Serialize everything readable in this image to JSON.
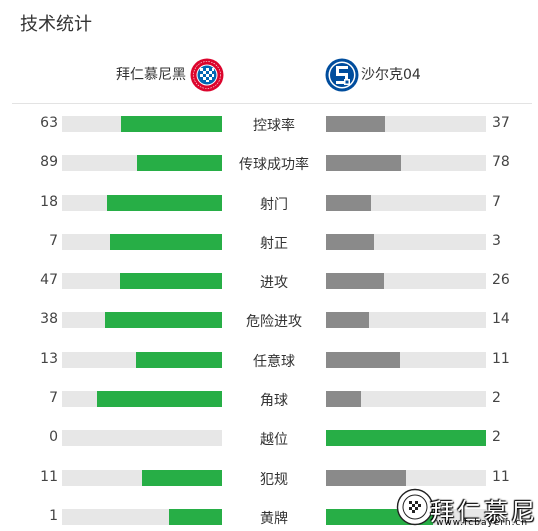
{
  "header": {
    "title": "技术统计"
  },
  "teams": {
    "home": {
      "name": "拜仁慕尼黑",
      "logo_icon": "bayern-munich-logo"
    },
    "away": {
      "name": "沙尔克04",
      "logo_icon": "schalke-04-logo"
    }
  },
  "colors": {
    "home_bar": "#27ae46",
    "away_bar": "#8a8a8a",
    "winner_bar": "#27ae46",
    "track": "#e7e7e7"
  },
  "stats": [
    {
      "label": "控球率",
      "home": "63",
      "away": "37",
      "home_frac": 0.63,
      "away_frac": 0.37
    },
    {
      "label": "传球成功率",
      "home": "89",
      "away": "78",
      "home_frac": 0.53,
      "away_frac": 0.47
    },
    {
      "label": "射门",
      "home": "18",
      "away": "7",
      "home_frac": 0.72,
      "away_frac": 0.28
    },
    {
      "label": "射正",
      "home": "7",
      "away": "3",
      "home_frac": 0.7,
      "away_frac": 0.3
    },
    {
      "label": "进攻",
      "home": "47",
      "away": "26",
      "home_frac": 0.64,
      "away_frac": 0.36
    },
    {
      "label": "危险进攻",
      "home": "38",
      "away": "14",
      "home_frac": 0.73,
      "away_frac": 0.27
    },
    {
      "label": "任意球",
      "home": "13",
      "away": "11",
      "home_frac": 0.54,
      "away_frac": 0.46
    },
    {
      "label": "角球",
      "home": "7",
      "away": "2",
      "home_frac": 0.78,
      "away_frac": 0.22
    },
    {
      "label": "越位",
      "home": "0",
      "away": "2",
      "home_frac": 0.0,
      "away_frac": 1.0
    },
    {
      "label": "犯规",
      "home": "11",
      "away": "11",
      "home_frac": 0.5,
      "away_frac": 0.5
    },
    {
      "label": "黄牌",
      "home": "1",
      "away": "2",
      "home_frac": 0.33,
      "away_frac": 0.67
    }
  ],
  "watermark": {
    "text": "拜仁慕尼",
    "url": "www.fcbayern.cn"
  }
}
